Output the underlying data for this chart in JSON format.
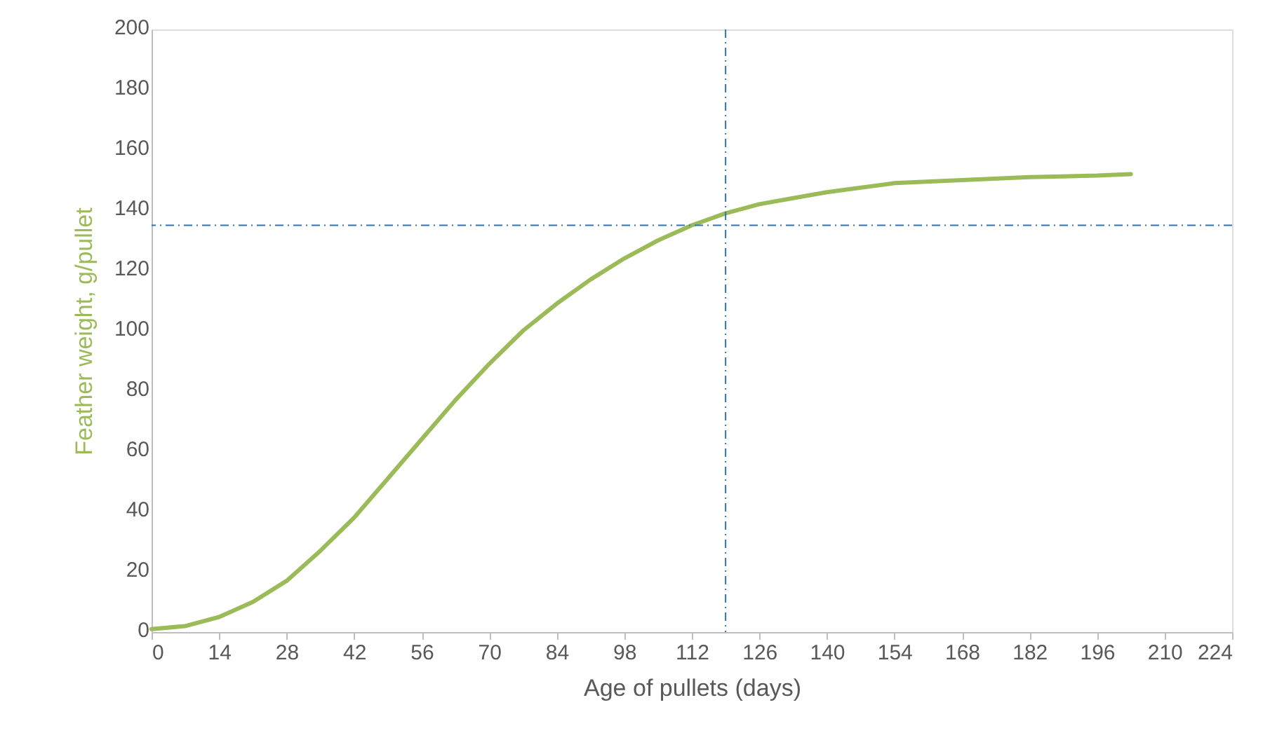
{
  "chart_data": {
    "type": "line",
    "xlabel": "Age of pullets (days)",
    "ylabel": "Feather weight, g/pullet",
    "x": [
      0,
      7,
      14,
      21,
      28,
      35,
      42,
      49,
      56,
      63,
      70,
      77,
      84,
      91,
      98,
      105,
      112,
      119,
      126,
      133,
      140,
      154,
      168,
      182,
      196,
      203
    ],
    "series": [
      {
        "color": "#9bbb59",
        "values": [
          1,
          2,
          5,
          10,
          17,
          27,
          38,
          51,
          64,
          77,
          89,
          100,
          109,
          117,
          124,
          130,
          135,
          139,
          142,
          144,
          146,
          149,
          150,
          151,
          151.5,
          152
        ]
      }
    ],
    "xlim": [
      0,
      224
    ],
    "xticks": [
      0,
      14,
      28,
      42,
      56,
      70,
      84,
      98,
      112,
      126,
      140,
      154,
      168,
      182,
      196,
      210,
      224
    ],
    "ylim": [
      0,
      200
    ],
    "yticks": [
      0,
      20,
      40,
      60,
      80,
      100,
      120,
      140,
      160,
      180,
      200
    ],
    "ref_lines": [
      {
        "axis": "y",
        "value": 135,
        "color": "#2e75b6",
        "line_style": "dashed"
      },
      {
        "axis": "x",
        "value": 119,
        "color": "#2e75b6",
        "line_style": "dashed"
      }
    ],
    "grid": false,
    "marker": "none",
    "line_style": "solid"
  }
}
